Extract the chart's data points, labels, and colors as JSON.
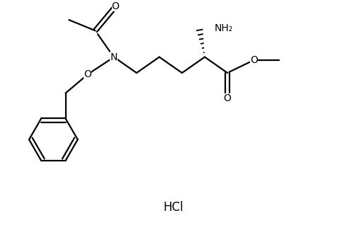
{
  "background_color": "#ffffff",
  "line_color": "#000000",
  "line_width": 1.6,
  "font_size_atoms": 10,
  "font_size_hcl": 12,
  "hcl_label": "HCl",
  "fig_width": 4.8,
  "fig_height": 3.25,
  "dpi": 100,
  "xlim": [
    0,
    10
  ],
  "ylim": [
    0,
    6.5
  ]
}
